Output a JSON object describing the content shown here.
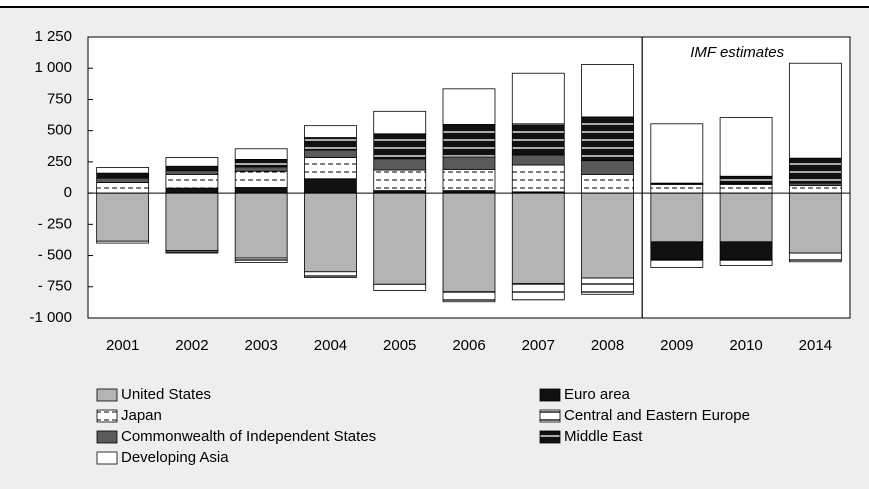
{
  "chart_data": {
    "type": "bar",
    "stacked": true,
    "categories": [
      "2001",
      "2002",
      "2003",
      "2004",
      "2005",
      "2006",
      "2007",
      "2008",
      "2009",
      "2010",
      "2014"
    ],
    "annotation": {
      "text": "IMF estimates",
      "from_category": "2009"
    },
    "ylim": [
      -1000,
      1250
    ],
    "yticks": [
      {
        "value": -1000,
        "label": "-1 000"
      },
      {
        "value": -750,
        "label": "- 750"
      },
      {
        "value": -500,
        "label": "- 500"
      },
      {
        "value": -250,
        "label": "- 250"
      },
      0,
      250,
      500,
      750,
      {
        "value": 1000,
        "label": "1 000"
      },
      {
        "value": 1250,
        "label": "1 250"
      }
    ],
    "series": [
      {
        "name": "United States",
        "color": "#b4b4b4",
        "pattern": "solid",
        "values": [
          -385,
          -460,
          -520,
          -630,
          -730,
          -790,
          -725,
          -680,
          -390,
          -390,
          -480
        ]
      },
      {
        "name": "Euro area",
        "color": "#111111",
        "pattern": "solid",
        "values": [
          0,
          40,
          45,
          115,
          20,
          20,
          10,
          0,
          -140,
          -140,
          0
        ]
      },
      {
        "name": "Japan",
        "color": "#ffffff",
        "pattern": "dashed",
        "values": [
          85,
          110,
          130,
          170,
          165,
          170,
          215,
          150,
          70,
          70,
          60
        ]
      },
      {
        "name": "Central and Eastern Europe",
        "color": "#ffffff",
        "pattern": "lines",
        "values": [
          -15,
          -20,
          -35,
          -45,
          -50,
          -80,
          -130,
          -130,
          -65,
          -50,
          -70
        ]
      },
      {
        "name": "Commonwealth of Independent States",
        "color": "#5a5a5a",
        "pattern": "solid",
        "values": [
          35,
          30,
          35,
          60,
          90,
          100,
          80,
          110,
          5,
          5,
          20
        ]
      },
      {
        "name": "Middle East",
        "color": "#111111",
        "pattern": "lines",
        "values": [
          40,
          35,
          60,
          100,
          200,
          260,
          250,
          350,
          5,
          60,
          200
        ]
      },
      {
        "name": "Developing Asia",
        "color": "#ffffff",
        "pattern": "solid",
        "values": [
          45,
          70,
          85,
          95,
          180,
          285,
          405,
          420,
          475,
          470,
          760
        ]
      }
    ]
  }
}
